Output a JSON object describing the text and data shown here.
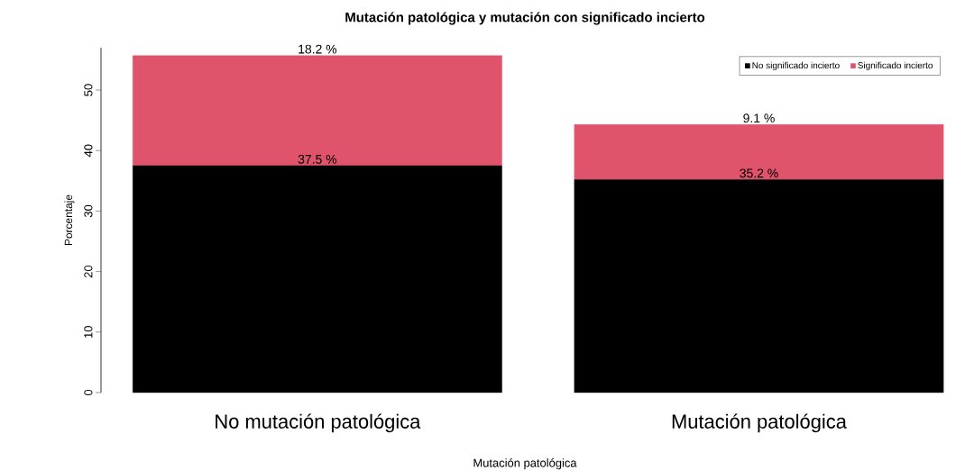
{
  "chart_data": {
    "type": "bar",
    "title": "Mutación patológica y mutación con significado incierto",
    "xlabel": "Mutación patológica",
    "ylabel": "Porcentaje",
    "categories": [
      "No mutación patológica",
      "Mutación patológica"
    ],
    "stacked": true,
    "series": [
      {
        "name": "No significado incierto",
        "color": "#000000",
        "values": [
          37.5,
          35.2
        ],
        "value_labels": [
          "37.5 %",
          "35.2 %"
        ]
      },
      {
        "name": "Significado incierto",
        "color": "#df536b",
        "values": [
          18.2,
          9.1
        ],
        "value_labels": [
          "18.2 %",
          "9.1 %"
        ]
      }
    ],
    "ylim": [
      0,
      57
    ],
    "yticks": [
      0,
      10,
      20,
      30,
      40,
      50
    ],
    "grid": false,
    "legend": "top right"
  }
}
